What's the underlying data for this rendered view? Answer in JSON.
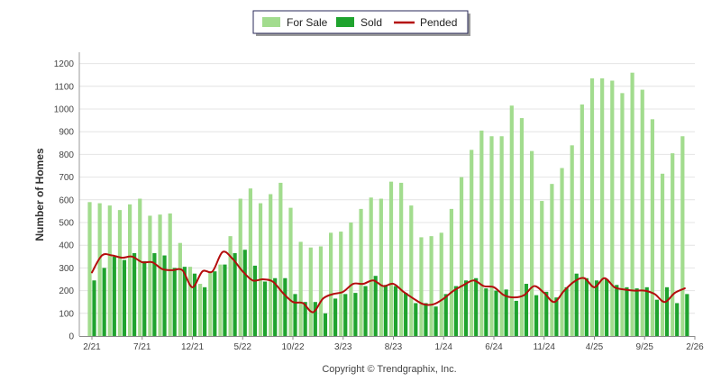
{
  "chart_data": {
    "type": "bar",
    "ylabel": "Number of Homes",
    "ylim": [
      0,
      1250
    ],
    "yticks": [
      0,
      100,
      200,
      300,
      400,
      500,
      600,
      700,
      800,
      900,
      1000,
      1100,
      1200
    ],
    "xtick_labels": [
      "2/21",
      "7/21",
      "12/21",
      "5/22",
      "10/22",
      "3/23",
      "8/23",
      "1/24",
      "6/24",
      "11/24",
      "4/25",
      "9/25",
      "2/26"
    ],
    "xtick_index": [
      0,
      5,
      10,
      15,
      20,
      25,
      30,
      35,
      40,
      45,
      50,
      55,
      60
    ],
    "grid": true,
    "legend_position": "top-center",
    "credit": "Copyright © Trendgraphix, Inc.",
    "colors": {
      "for_sale": "#a2dc8e",
      "sold": "#1fa32e",
      "pended": "#b40d0d"
    },
    "series": [
      {
        "name": "For Sale",
        "type": "bar",
        "values": [
          590,
          585,
          575,
          555,
          580,
          605,
          530,
          535,
          540,
          410,
          305,
          230,
          285,
          315,
          440,
          605,
          650,
          585,
          625,
          675,
          565,
          415,
          390,
          395,
          455,
          460,
          500,
          560,
          610,
          605,
          680,
          675,
          575,
          435,
          440,
          455,
          560,
          700,
          820,
          905,
          880,
          880,
          1015,
          960,
          815,
          595,
          670,
          740,
          840,
          1020,
          1135,
          1135,
          1125,
          1070,
          1160,
          1085,
          955,
          715,
          805,
          880
        ]
      },
      {
        "name": "Sold",
        "type": "bar",
        "values": [
          245,
          300,
          350,
          335,
          365,
          330,
          365,
          355,
          300,
          305,
          275,
          215,
          285,
          315,
          365,
          380,
          310,
          240,
          255,
          255,
          185,
          150,
          150,
          100,
          165,
          185,
          190,
          220,
          265,
          225,
          220,
          190,
          145,
          145,
          130,
          185,
          220,
          245,
          255,
          210,
          200,
          205,
          155,
          230,
          180,
          195,
          170,
          215,
          275,
          255,
          245,
          250,
          225,
          215,
          210,
          215,
          160,
          215,
          145,
          185
        ]
      },
      {
        "name": "Pended",
        "type": "line",
        "values": [
          280,
          355,
          355,
          345,
          350,
          325,
          325,
          295,
          290,
          290,
          215,
          285,
          285,
          370,
          340,
          285,
          245,
          250,
          240,
          190,
          150,
          145,
          105,
          165,
          185,
          195,
          230,
          230,
          245,
          220,
          230,
          195,
          165,
          140,
          140,
          165,
          200,
          225,
          245,
          220,
          215,
          180,
          170,
          180,
          220,
          190,
          150,
          200,
          240,
          255,
          215,
          255,
          215,
          205,
          200,
          200,
          185,
          150,
          190,
          210
        ]
      }
    ]
  }
}
